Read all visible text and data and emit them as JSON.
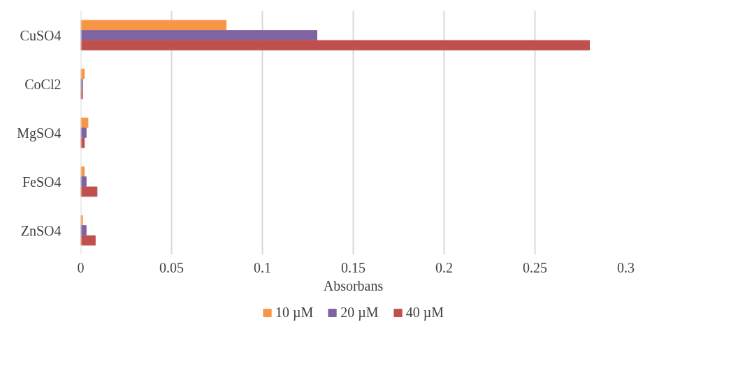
{
  "chart_data": {
    "type": "bar",
    "orientation": "horizontal",
    "xlabel": "Absorbans",
    "categories": [
      "CuSO4",
      "CoCl2",
      "MgSO4",
      "FeSO4",
      "ZnSO4"
    ],
    "series": [
      {
        "name": "10 µM",
        "color": "#f79646",
        "values": [
          0.08,
          0.002,
          0.004,
          0.002,
          0.001
        ]
      },
      {
        "name": "20 µM",
        "color": "#8064a2",
        "values": [
          0.13,
          0.001,
          0.003,
          0.003,
          0.003
        ]
      },
      {
        "name": "40 µM",
        "color": "#c0504d",
        "values": [
          0.28,
          0.001,
          0.002,
          0.009,
          0.008
        ]
      }
    ],
    "xlim": [
      0,
      0.3
    ],
    "xticks": [
      0,
      0.05,
      0.1,
      0.15,
      0.2,
      0.25,
      0.3
    ],
    "grid": "x",
    "legend": "bottom"
  }
}
